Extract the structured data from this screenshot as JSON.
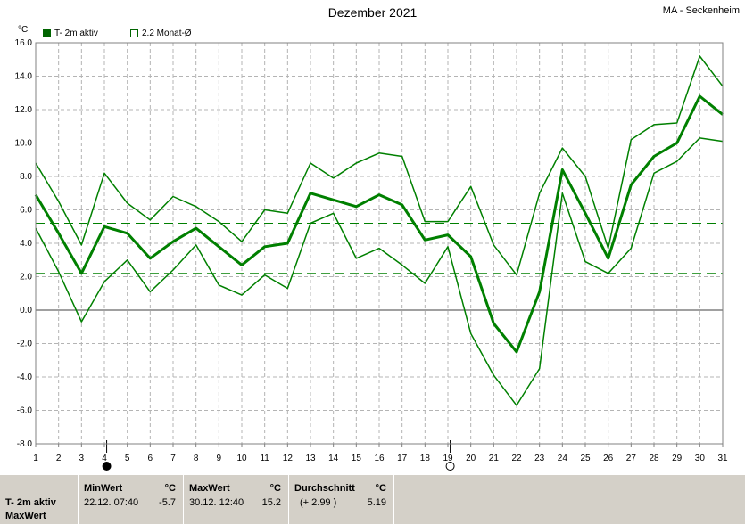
{
  "header": {
    "title": "Dezember 2021",
    "station": "MA - Seckenheim",
    "unit": "°C",
    "legend": [
      {
        "label": "T- 2m aktiv",
        "color": "#006400"
      },
      {
        "label": "2.2 Monat-Ø",
        "color": "#006400"
      }
    ]
  },
  "chart_data": {
    "type": "line",
    "x": [
      1,
      2,
      3,
      4,
      5,
      6,
      7,
      8,
      9,
      10,
      11,
      12,
      13,
      14,
      15,
      16,
      17,
      18,
      19,
      20,
      21,
      22,
      23,
      24,
      25,
      26,
      27,
      28,
      29,
      30,
      31
    ],
    "xlim": [
      1,
      31
    ],
    "ylim": [
      -8,
      16
    ],
    "yticks": [
      "16.0",
      "14.0",
      "12.0",
      "10.0",
      "8.0",
      "6.0",
      "4.0",
      "2.0",
      "0.0",
      "-2.0",
      "-4.0",
      "-6.0",
      "-8.0"
    ],
    "xticks": [
      "1",
      "2",
      "3",
      "4",
      "5",
      "6",
      "7",
      "8",
      "9",
      "10",
      "11",
      "12",
      "13",
      "14",
      "15",
      "16",
      "17",
      "18",
      "19",
      "20",
      "21",
      "22",
      "23",
      "24",
      "25",
      "26",
      "27",
      "28",
      "29",
      "30",
      "31"
    ],
    "grid": true,
    "series": [
      {
        "name": "T- 2m aktiv",
        "role": "mean",
        "color": "#008000",
        "values": [
          6.9,
          4.6,
          2.2,
          5.0,
          4.6,
          3.1,
          4.1,
          4.9,
          3.8,
          2.7,
          3.8,
          4.0,
          7.0,
          6.6,
          6.2,
          6.9,
          6.3,
          4.2,
          4.5,
          3.2,
          -0.8,
          -2.5,
          1.1,
          8.4,
          5.8,
          3.1,
          7.5,
          9.2,
          10.0,
          12.8,
          11.7
        ]
      },
      {
        "role": "max",
        "color": "#008000",
        "values": [
          8.8,
          6.5,
          3.9,
          8.2,
          6.4,
          5.4,
          6.8,
          6.2,
          5.3,
          4.1,
          6.0,
          5.8,
          8.8,
          7.9,
          8.8,
          9.4,
          9.2,
          5.3,
          5.3,
          7.4,
          3.9,
          2.1,
          7.0,
          9.7,
          8.0,
          3.7,
          10.2,
          11.1,
          11.2,
          15.2,
          13.4
        ]
      },
      {
        "role": "min",
        "color": "#008000",
        "values": [
          4.9,
          2.3,
          -0.7,
          1.7,
          3.0,
          1.1,
          2.4,
          3.9,
          1.5,
          0.9,
          2.1,
          1.3,
          5.2,
          5.8,
          3.1,
          3.7,
          2.7,
          1.6,
          3.8,
          -1.4,
          -3.9,
          -5.7,
          -3.5,
          7.0,
          2.9,
          2.2,
          3.7,
          8.2,
          8.9,
          10.3,
          10.1
        ]
      }
    ],
    "reference_lines": [
      {
        "value": 5.2,
        "color": "#008000"
      },
      {
        "value": 2.2,
        "color": "#008000"
      }
    ],
    "moon_phases": [
      {
        "day": 4,
        "phase": "full"
      },
      {
        "day": 19,
        "phase": "new"
      }
    ]
  },
  "stats": {
    "row_label_1": "T- 2m aktiv",
    "row_label_2": "MaxWert",
    "min": {
      "header": "MinWert",
      "unit": "°C",
      "datetime": "22.12.  07:40",
      "value": "-5.7"
    },
    "max": {
      "header": "MaxWert",
      "unit": "°C",
      "datetime": "30.12.  12:40",
      "value": "15.2"
    },
    "avg": {
      "header": "Durchschnitt",
      "unit": "°C",
      "delta": "(+ 2.99 )",
      "value": "5.19"
    }
  }
}
